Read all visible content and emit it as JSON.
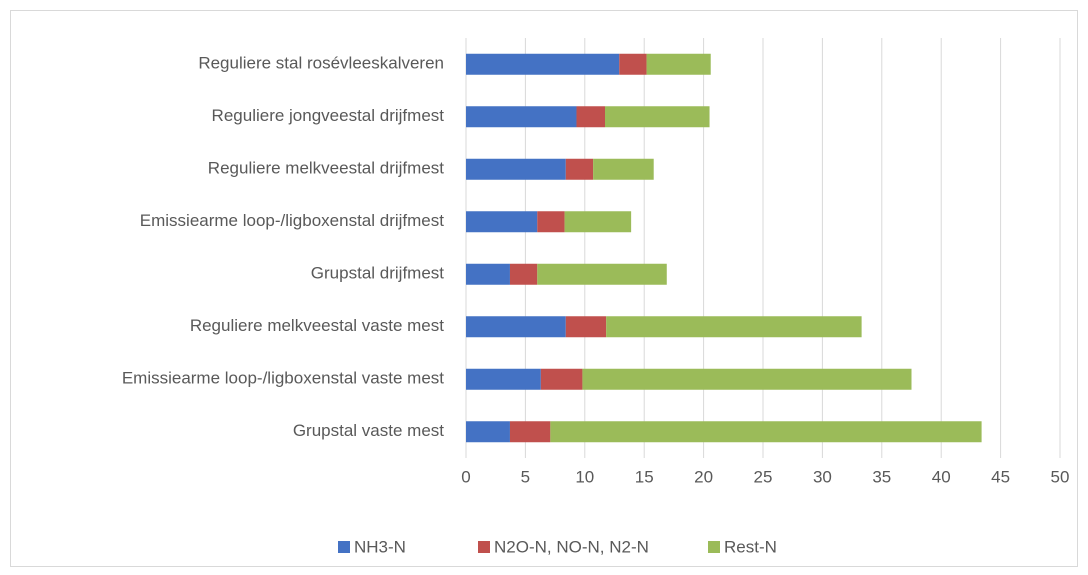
{
  "chart_data": {
    "type": "bar",
    "orientation": "horizontal",
    "stacked": true,
    "categories": [
      "Reguliere stal rosévleeskalveren",
      "Reguliere jongveestal drijfmest",
      "Reguliere melkveestal drijfmest",
      "Emissiearme loop-/ligboxenstal drijfmest",
      "Grupstal drijfmest",
      "Reguliere melkveestal vaste mest",
      "Emissiearme loop-/ligboxenstal vaste mest",
      "Grupstal vaste mest"
    ],
    "series": [
      {
        "name": "NH3-N",
        "color": "#4472c4",
        "values": [
          12.9,
          9.3,
          8.4,
          6.0,
          3.7,
          8.4,
          6.3,
          3.7
        ]
      },
      {
        "name": "N2O-N, NO-N, N2-N",
        "color": "#c0504d",
        "values": [
          2.3,
          2.4,
          2.3,
          2.3,
          2.3,
          3.4,
          3.5,
          3.4
        ]
      },
      {
        "name": "Rest-N",
        "color": "#9bbb59",
        "values": [
          5.4,
          8.8,
          5.1,
          5.6,
          10.9,
          21.5,
          27.7,
          36.3
        ]
      }
    ],
    "xlim": [
      0,
      50
    ],
    "xticks": [
      0,
      5,
      10,
      15,
      20,
      25,
      30,
      35,
      40,
      45,
      50
    ],
    "grid": true,
    "legend": "bottom"
  }
}
